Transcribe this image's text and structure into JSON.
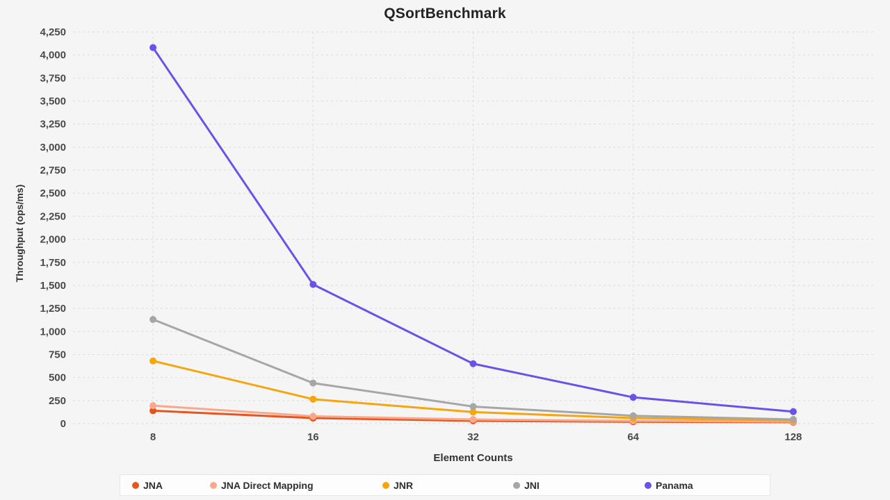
{
  "title": "QSortBenchmark",
  "chart_data": {
    "type": "line",
    "x": [
      8,
      16,
      32,
      64,
      128
    ],
    "x_tick_labels": [
      "8",
      "16",
      "32",
      "64",
      "128"
    ],
    "xlabel": "Element Counts",
    "ylabel": "Throughput (ops/ms)",
    "ylim": [
      0,
      4250
    ],
    "y_tick_step": 250,
    "grid": "dashed",
    "legend_position": "bottom",
    "series": [
      {
        "name": "JNA",
        "color": "#e8541d",
        "values": [
          140,
          60,
          30,
          20,
          15
        ]
      },
      {
        "name": "JNA Direct Mapping",
        "color": "#f9a98b",
        "values": [
          195,
          80,
          45,
          30,
          22
        ]
      },
      {
        "name": "JNR",
        "color": "#f5a50d",
        "values": [
          680,
          265,
          125,
          60,
          35
        ]
      },
      {
        "name": "JNI",
        "color": "#a6a6a6",
        "values": [
          1130,
          440,
          185,
          85,
          45
        ]
      },
      {
        "name": "Panama",
        "color": "#6a52e8",
        "values": [
          4080,
          1510,
          650,
          285,
          130
        ]
      }
    ]
  },
  "colors": {
    "background": "#f5f5f6",
    "grid": "#dcdcdc",
    "title_text": "#232323",
    "tick_text": "#4a4a4a",
    "legend_background": "#fdfdfd"
  }
}
